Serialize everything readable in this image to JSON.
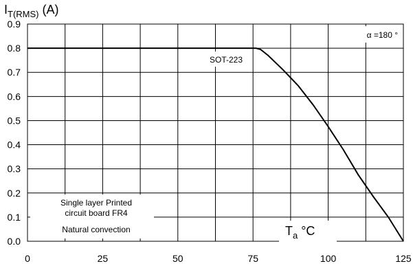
{
  "chart_data": {
    "type": "line",
    "ylabel_main": "I",
    "ylabel_sub": "T(RMS)",
    "ylabel_unit": " (A)",
    "xlabel_main": "T",
    "xlabel_sub": "a",
    "xlabel_unit": " °C",
    "xlim": [
      0,
      125
    ],
    "ylim": [
      0,
      0.9
    ],
    "x_ticks": [
      0,
      25,
      50,
      75,
      100,
      125
    ],
    "x_tick_labels": [
      "0",
      "25",
      "50",
      "75",
      "100",
      "125"
    ],
    "y_ticks": [
      0.0,
      0.1,
      0.2,
      0.3,
      0.4,
      0.5,
      0.6,
      0.7,
      0.8,
      0.9
    ],
    "y_tick_labels": [
      "0.0",
      "0.1",
      "0.2",
      "0.3",
      "0.4",
      "0.5",
      "0.6",
      "0.7",
      "0.8",
      "0.9"
    ],
    "grid": true,
    "series": [
      {
        "x": [
          0,
          76,
          77.5,
          80,
          85,
          90,
          95,
          100,
          105,
          110,
          115,
          120,
          125
        ],
        "y": [
          0.8,
          0.8,
          0.795,
          0.77,
          0.71,
          0.645,
          0.565,
          0.475,
          0.38,
          0.275,
          0.185,
          0.1,
          0.0
        ]
      }
    ],
    "annotations": {
      "alpha": "α =180 °",
      "package": "SOT-223",
      "pcb_line1": "Single layer Printed",
      "pcb_line2": "circuit board FR4",
      "convection": "Natural convection"
    }
  }
}
